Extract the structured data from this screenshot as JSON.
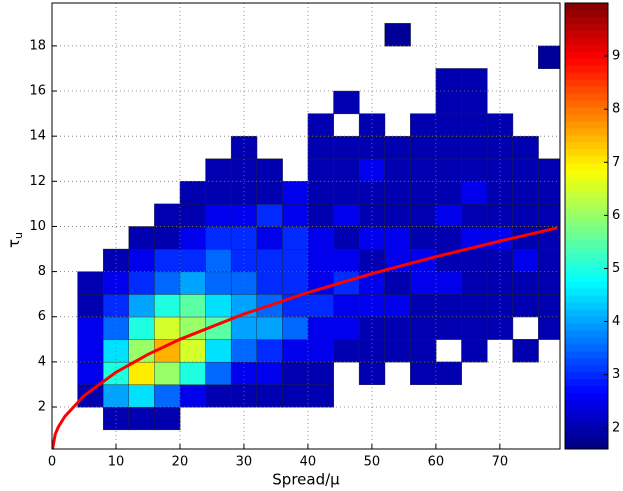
{
  "chart_data": {
    "type": "contour",
    "xlabel": "Spread/μ",
    "ylabel": "τ",
    "ylabel_subscript": "u",
    "xlim": [
      0,
      79.4
    ],
    "ylim": [
      0.14,
      19.9
    ],
    "xticks": [
      0,
      10,
      20,
      30,
      40,
      50,
      60,
      70
    ],
    "yticks": [
      2,
      4,
      6,
      8,
      10,
      12,
      14,
      16,
      18
    ],
    "grid": true,
    "colormap": "jet",
    "xbins": [
      0,
      4,
      8,
      12,
      16,
      20,
      24,
      28,
      32,
      36,
      40,
      44,
      48,
      52,
      56,
      60,
      64,
      68,
      72,
      76,
      80
    ],
    "ybins": [
      1,
      2,
      3,
      4,
      5,
      6,
      7,
      8,
      9,
      10,
      11,
      12,
      13,
      14,
      15,
      16,
      17,
      18,
      19,
      20
    ],
    "z": [
      [
        null,
        null,
        2,
        2,
        2,
        null,
        null,
        null,
        null,
        null,
        null,
        null,
        null,
        null,
        null,
        null,
        null,
        null,
        null,
        null
      ],
      [
        null,
        2,
        4,
        4.5,
        3.5,
        2.5,
        2,
        2,
        2,
        2,
        2,
        null,
        null,
        null,
        null,
        null,
        null,
        null,
        null,
        null
      ],
      [
        null,
        2.5,
        5,
        7,
        6,
        5,
        3.5,
        2.5,
        2.5,
        2,
        2,
        null,
        2,
        null,
        2,
        2,
        null,
        null,
        null,
        null
      ],
      [
        null,
        2.5,
        4.5,
        6,
        7.5,
        6.5,
        4.5,
        3.5,
        3,
        2.5,
        2.5,
        2,
        2,
        2,
        2,
        null,
        2,
        null,
        2,
        null
      ],
      [
        null,
        2.5,
        3.5,
        5,
        6.5,
        6,
        5.5,
        4,
        4,
        3.5,
        2.5,
        2.5,
        2,
        2,
        2,
        2,
        2,
        2,
        null,
        2
      ],
      [
        null,
        2,
        3,
        4,
        5,
        5.5,
        4.5,
        4,
        3.5,
        3,
        3,
        2.5,
        2.5,
        2.5,
        2,
        2,
        2,
        2,
        2,
        2
      ],
      [
        null,
        2,
        2.5,
        3,
        3.5,
        4,
        3.5,
        3.5,
        3,
        3,
        2.5,
        3,
        2.5,
        2,
        2.5,
        2.5,
        2,
        2,
        2,
        2
      ],
      [
        null,
        null,
        2,
        2.5,
        3,
        3,
        3.5,
        3,
        3,
        3,
        2.5,
        2.5,
        2,
        2.5,
        2.5,
        2,
        2,
        2,
        2.5,
        2
      ],
      [
        null,
        null,
        null,
        2,
        2,
        2.5,
        3,
        3,
        2.5,
        3,
        2.5,
        2,
        2.5,
        2.5,
        2,
        2,
        2.5,
        2.5,
        2,
        2
      ],
      [
        null,
        null,
        null,
        null,
        2,
        2,
        2.5,
        2.5,
        3,
        2.5,
        2,
        2.5,
        2,
        2,
        2,
        2.5,
        2,
        2,
        2,
        2
      ],
      [
        null,
        null,
        null,
        null,
        null,
        2,
        2,
        2,
        2,
        2.5,
        2,
        2,
        2,
        2,
        2,
        2,
        2.5,
        2,
        2,
        2
      ],
      [
        null,
        null,
        null,
        null,
        null,
        null,
        2,
        2,
        2,
        null,
        2,
        2,
        2.5,
        2,
        2,
        2,
        2,
        2,
        2,
        2
      ],
      [
        null,
        null,
        null,
        null,
        null,
        null,
        null,
        2,
        null,
        null,
        2,
        2,
        2,
        2,
        2,
        2,
        2,
        2,
        2,
        null
      ],
      [
        null,
        null,
        null,
        null,
        null,
        null,
        null,
        null,
        null,
        null,
        2,
        null,
        2,
        null,
        2,
        2,
        2,
        2,
        null,
        null
      ],
      [
        null,
        null,
        null,
        null,
        null,
        null,
        null,
        null,
        null,
        null,
        null,
        2,
        null,
        null,
        null,
        2,
        2,
        null,
        null,
        null
      ],
      [
        null,
        null,
        null,
        null,
        null,
        null,
        null,
        null,
        null,
        null,
        null,
        null,
        null,
        null,
        null,
        2,
        2,
        null,
        null,
        null
      ],
      [
        null,
        null,
        null,
        null,
        null,
        null,
        null,
        null,
        null,
        null,
        null,
        null,
        null,
        null,
        null,
        null,
        null,
        null,
        null,
        1.8
      ],
      [
        null,
        null,
        null,
        null,
        null,
        null,
        null,
        null,
        null,
        null,
        null,
        null,
        null,
        1.8,
        null,
        null,
        null,
        null,
        null,
        null
      ],
      [
        null,
        null,
        null,
        null,
        null,
        null,
        null,
        null,
        null,
        null,
        null,
        null,
        null,
        null,
        null,
        null,
        null,
        null,
        null,
        null
      ]
    ],
    "curve": {
      "color": "#ff0000",
      "x": [
        0,
        0.5,
        1,
        2,
        5,
        10,
        15,
        20,
        30,
        40,
        50,
        60,
        70,
        79
      ],
      "y": [
        0,
        0.79,
        1.12,
        1.58,
        2.5,
        3.54,
        4.33,
        5,
        6.12,
        7.07,
        7.91,
        8.66,
        9.35,
        9.94
      ]
    },
    "colorbar": {
      "lim": [
        1.6,
        10
      ],
      "ticks": [
        2,
        3,
        4,
        5,
        6,
        7,
        8,
        9
      ]
    }
  }
}
